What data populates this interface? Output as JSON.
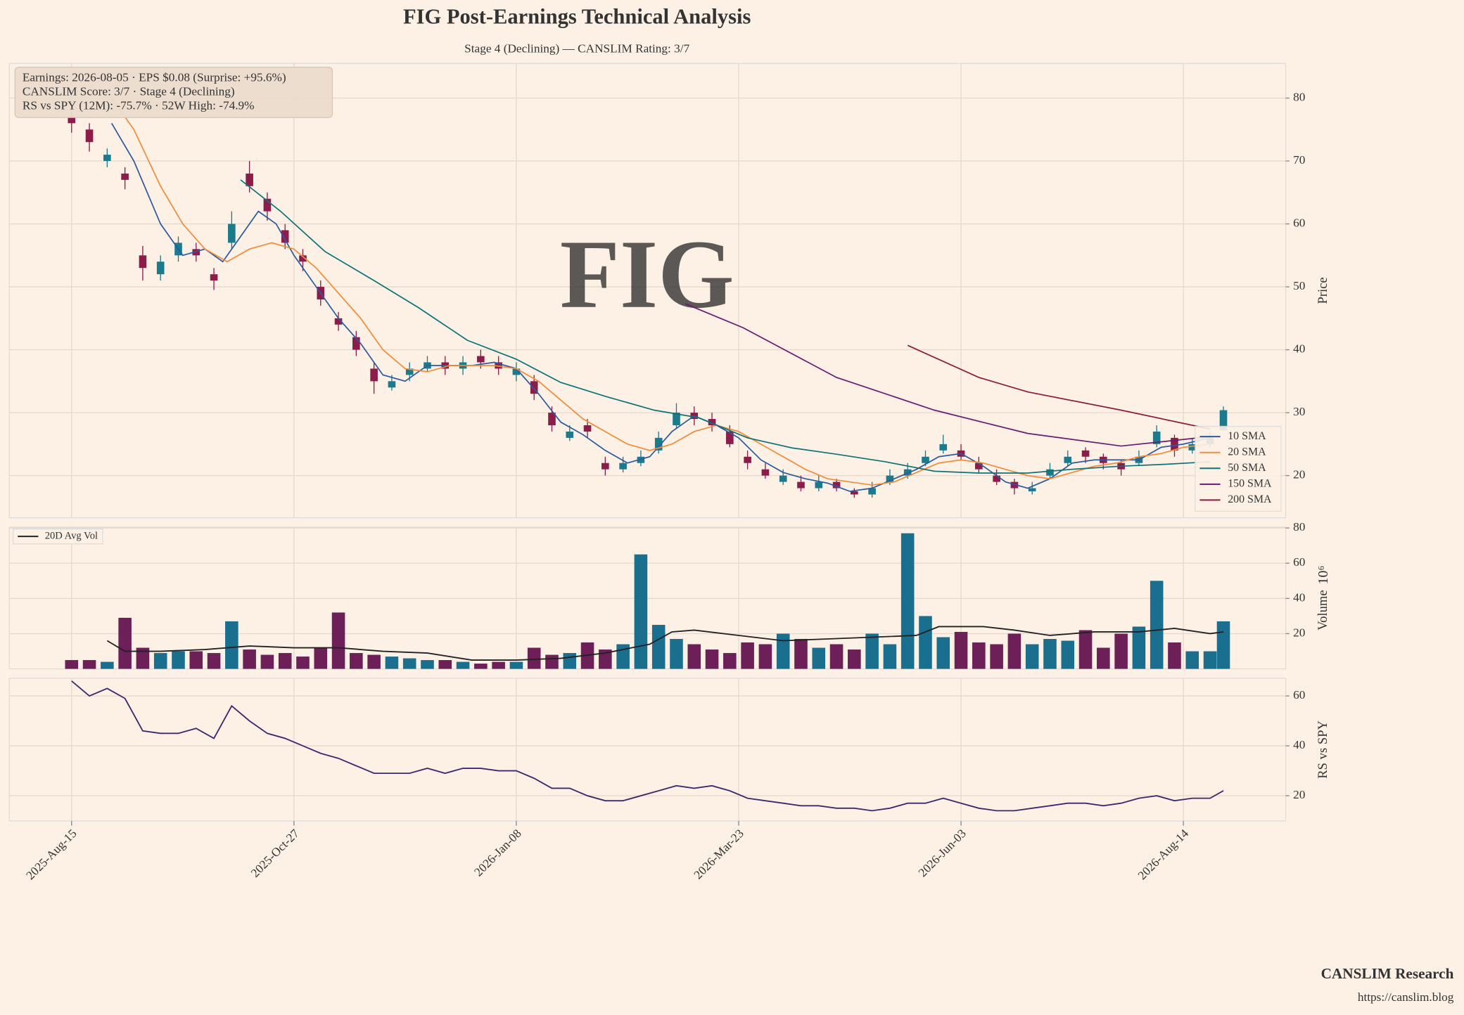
{
  "chart_data": [
    {
      "type": "candlestick",
      "title": "FIG Post-Earnings Technical Analysis",
      "subtitle": "Stage 4 (Declining) — CANSLIM Rating: 3/7",
      "watermark": "FIG",
      "annotation": [
        "Earnings: 2026-08-05 · EPS $0.08 (Surprise: +95.6%)",
        "CANSLIM Score: 3/7 · Stage 4 (Declining)",
        "RS vs SPY (12M): -75.7% · 52W High: -74.9%"
      ],
      "y_label": "Price",
      "up_color": "#1b7a8c",
      "down_color": "#8c1d4a",
      "xlim": [
        -14,
        273
      ],
      "ylim": [
        13.3,
        85.5
      ],
      "yticks": [
        20,
        30,
        40,
        50,
        60,
        70,
        80
      ],
      "grid": true,
      "legend": "lower right",
      "x": [
        0,
        4,
        8,
        12,
        16,
        20,
        24,
        28,
        32,
        36,
        40,
        44,
        48,
        52,
        56,
        60,
        64,
        68,
        72,
        76,
        80,
        84,
        88,
        92,
        96,
        100,
        104,
        108,
        112,
        116,
        120,
        124,
        128,
        132,
        136,
        140,
        144,
        148,
        152,
        156,
        160,
        164,
        168,
        172,
        176,
        180,
        184,
        188,
        192,
        196,
        200,
        204,
        208,
        212,
        216,
        220,
        224,
        228,
        232,
        236,
        240,
        244,
        248,
        252,
        256,
        259
      ],
      "open": [
        77,
        75,
        70,
        68,
        55,
        52,
        55,
        56,
        52,
        57,
        68,
        64,
        59,
        55,
        50,
        45,
        42,
        37,
        34,
        36,
        37,
        38,
        37,
        39,
        38,
        36,
        35,
        30,
        26,
        28,
        22,
        21,
        22,
        24,
        28,
        30,
        29,
        27,
        23,
        21,
        19,
        19,
        18,
        19,
        17.5,
        17,
        19,
        20,
        22,
        24,
        24,
        22,
        20,
        19,
        17.5,
        20,
        22,
        24,
        23,
        22,
        22,
        25,
        26,
        24,
        25,
        27.2
      ],
      "high": [
        78.5,
        76,
        72,
        69,
        56.5,
        55,
        58,
        57,
        53,
        62,
        70,
        65,
        60,
        56,
        51,
        46,
        43,
        38,
        36,
        38,
        39,
        39,
        39,
        40,
        39,
        38,
        36,
        31,
        28,
        29,
        23,
        23,
        24,
        27,
        31.5,
        31,
        30,
        28,
        24,
        22,
        21,
        20,
        20,
        19.5,
        18,
        19,
        21,
        22,
        24,
        26.5,
        25,
        23,
        21,
        19.5,
        19,
        22,
        24,
        24.5,
        23.5,
        22.5,
        24,
        28,
        26.5,
        26,
        27,
        31
      ],
      "low": [
        74.5,
        71.5,
        69,
        65.5,
        51,
        51,
        54,
        54,
        49.5,
        56,
        65,
        60.5,
        56,
        52.5,
        47,
        43,
        39,
        33,
        33.5,
        35,
        36.5,
        36,
        36,
        37,
        36,
        35,
        32,
        27,
        25.5,
        26,
        20,
        20.5,
        21.5,
        23.5,
        27.5,
        28,
        27,
        24.5,
        21,
        19.5,
        18.5,
        17.5,
        17.5,
        17.5,
        16.5,
        16.5,
        18.5,
        19.5,
        21.5,
        23.5,
        22.5,
        20.5,
        18.5,
        17,
        17,
        19.5,
        21.5,
        22,
        21,
        20,
        21.5,
        24.5,
        23,
        23.5,
        24.5,
        27
      ],
      "close": [
        76,
        73,
        71,
        67,
        53,
        54,
        57,
        55,
        51,
        60,
        66,
        62,
        57,
        54,
        48,
        44,
        40,
        35,
        35,
        37,
        38,
        37,
        38,
        38,
        37,
        37,
        33,
        28,
        27,
        27,
        21,
        22,
        23,
        26,
        30,
        29,
        28,
        25,
        22,
        20,
        20,
        18,
        19,
        18,
        17,
        18,
        20,
        21,
        23,
        25,
        23,
        21,
        19,
        18,
        18,
        21,
        23,
        23,
        22,
        21,
        23,
        27,
        24,
        25,
        26,
        30.4
      ],
      "series": [
        {
          "name": "10 SMA",
          "color": "#2b5aa0",
          "x": [
            9,
            14,
            20,
            25,
            30,
            34,
            38,
            42,
            46,
            50,
            55,
            60,
            65,
            70,
            75,
            80,
            85,
            90,
            95,
            100,
            105,
            110,
            115,
            120,
            125,
            130,
            135,
            140,
            145,
            150,
            155,
            160,
            165,
            170,
            175,
            180,
            185,
            190,
            195,
            200,
            205,
            210,
            215,
            220,
            225,
            230,
            235,
            240,
            245,
            250,
            256
          ],
          "values": [
            76,
            70,
            60,
            55,
            56,
            54,
            58,
            62,
            60,
            55,
            50,
            45,
            41,
            36,
            35,
            37.5,
            37.5,
            37.5,
            38,
            37,
            33,
            28.5,
            26.5,
            24,
            22,
            23,
            27,
            29.5,
            28,
            26,
            22.5,
            20.5,
            19.5,
            18.8,
            17.5,
            18,
            19.5,
            21,
            23,
            23.5,
            21.5,
            19,
            18,
            19.5,
            22,
            22.5,
            22.5,
            22.5,
            24.5,
            25,
            26
          ]
        },
        {
          "name": "20 SMA",
          "color": "#f28c38",
          "x": [
            9,
            14,
            20,
            25,
            30,
            35,
            40,
            45,
            50,
            55,
            60,
            65,
            70,
            75,
            80,
            85,
            90,
            95,
            100,
            105,
            110,
            115,
            120,
            125,
            130,
            135,
            140,
            145,
            150,
            155,
            160,
            165,
            170,
            175,
            180,
            185,
            190,
            195,
            200,
            205,
            210,
            215,
            220,
            225,
            230,
            235,
            240,
            245,
            250,
            256
          ],
          "values": [
            80,
            75,
            66,
            60,
            56,
            54,
            56,
            57,
            56,
            53,
            49,
            45,
            40,
            37,
            36.5,
            37.5,
            37.5,
            37.5,
            37,
            35,
            32,
            29,
            27,
            25,
            24,
            25,
            27,
            28,
            27,
            25,
            23,
            21,
            19.5,
            19,
            18.5,
            19,
            20.5,
            22,
            22.5,
            22,
            21,
            20,
            19.5,
            20.5,
            21.5,
            22,
            23,
            23.5,
            24.5,
            25
          ]
        },
        {
          "name": "50 SMA",
          "color": "#0d7377",
          "x": [
            38,
            47,
            57,
            68,
            78,
            89,
            100,
            110,
            120,
            131,
            141,
            152,
            162,
            172,
            183,
            194,
            204,
            215,
            225,
            236,
            246,
            256
          ],
          "values": [
            67,
            62,
            55.6,
            51,
            46.7,
            41.5,
            38.5,
            34.8,
            32.6,
            30.4,
            29.2,
            26,
            24.4,
            23.4,
            22.2,
            20.7,
            20.4,
            20.4,
            21,
            21.5,
            21.8,
            22.2
          ]
        },
        {
          "name": "150 SMA",
          "color": "#6b1a6e",
          "x": [
            138,
            151,
            172,
            194,
            215,
            236,
            256
          ],
          "values": [
            47.3,
            43.5,
            35.6,
            30.4,
            26.7,
            24.7,
            26.2
          ]
        },
        {
          "name": "200 SMA",
          "color": "#8b1a3a",
          "x": [
            188,
            204,
            215,
            236,
            256
          ],
          "values": [
            40.7,
            35.6,
            33.3,
            30.4,
            27.4
          ]
        }
      ]
    },
    {
      "type": "bar",
      "y_label": "Volume",
      "y_offset_label": "10⁶",
      "up_color": "#1a6f8f",
      "down_color": "#6d1f57",
      "ylim": [
        0,
        80.5
      ],
      "yticks": [
        20,
        40,
        60,
        80
      ],
      "grid": true,
      "legend": "upper left",
      "values": [
        5,
        5,
        4,
        29,
        12,
        9,
        10,
        10,
        9,
        27,
        11,
        8,
        9,
        7,
        12,
        32,
        9,
        8,
        7,
        6,
        5,
        5,
        4,
        3,
        4,
        4,
        12,
        8,
        9,
        15,
        11,
        14,
        65,
        25,
        17,
        14,
        11,
        9,
        15,
        14,
        20,
        17,
        12,
        14,
        11,
        20,
        14,
        77,
        30,
        18,
        21,
        15,
        14,
        20,
        14,
        17,
        16,
        22,
        12,
        20,
        24,
        50,
        15,
        10,
        10,
        27
      ],
      "series": [
        {
          "name": "20D Avg Vol",
          "color": "#222222",
          "x": [
            8,
            12,
            20,
            30,
            40,
            50,
            60,
            70,
            80,
            90,
            100,
            110,
            120,
            130,
            135,
            140,
            150,
            160,
            170,
            180,
            190,
            195,
            205,
            212,
            220,
            230,
            240,
            248,
            256,
            259
          ],
          "values": [
            16,
            10,
            10,
            11,
            13,
            12,
            12,
            10,
            9,
            5,
            5,
            6,
            9,
            14,
            21,
            22,
            19,
            16,
            17,
            18,
            19,
            24,
            24,
            22,
            19,
            21,
            21,
            23,
            20,
            21
          ]
        }
      ]
    },
    {
      "type": "line",
      "y_label": "RS vs SPY",
      "color": "#3b2a6b",
      "ylim": [
        9.9,
        67.1
      ],
      "yticks": [
        20,
        40,
        60
      ],
      "grid": true,
      "values": [
        66,
        60,
        63,
        59,
        46,
        45,
        45,
        47,
        43,
        56,
        50,
        45,
        43,
        40,
        37,
        35,
        32,
        29,
        29,
        29,
        31,
        29,
        31,
        31,
        30,
        30,
        27,
        23,
        23,
        20,
        18,
        18,
        20,
        22,
        24,
        23,
        24,
        22,
        19,
        18,
        17,
        16,
        16,
        15,
        15,
        14,
        15,
        17,
        17,
        19,
        17,
        15,
        14,
        14,
        15,
        16,
        17,
        17,
        16,
        17,
        19,
        20,
        18,
        19,
        19,
        22
      ],
      "xticks": [
        {
          "value": 0,
          "label": "2025-Aug-15"
        },
        {
          "value": 50,
          "label": "2025-Oct-27"
        },
        {
          "value": 100,
          "label": "2026-Jan-08"
        },
        {
          "value": 150,
          "label": "2026-Mar-23"
        },
        {
          "value": 200,
          "label": "2026-Jun-03"
        },
        {
          "value": 250,
          "label": "2026-Aug-14"
        }
      ]
    }
  ],
  "footer": {
    "brand": "CANSLIM Research",
    "url": "https://canslim.blog"
  }
}
